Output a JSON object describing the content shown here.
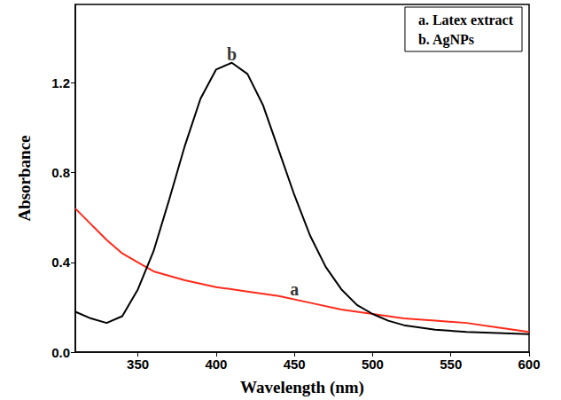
{
  "chart_data": {
    "type": "line",
    "x_label": "Wavelength (nm)",
    "y_label": "Absorbance",
    "xlim": [
      310,
      600
    ],
    "xticks": [
      350,
      400,
      450,
      500,
      550,
      600
    ],
    "ylim": [
      0,
      1.55
    ],
    "yticks": [
      {
        "value": 0,
        "label": "0.0"
      },
      0.4,
      0.8,
      1.2
    ],
    "grid": false,
    "legend": "upper right",
    "series": [
      {
        "name": "a. Latex extract",
        "color": "#ff2a1a",
        "x": [
          310,
          320,
          330,
          340,
          350,
          360,
          370,
          380,
          400,
          420,
          440,
          460,
          480,
          500,
          520,
          540,
          560,
          580,
          600
        ],
        "values": [
          0.64,
          0.57,
          0.5,
          0.44,
          0.4,
          0.36,
          0.34,
          0.32,
          0.29,
          0.27,
          0.25,
          0.22,
          0.19,
          0.17,
          0.15,
          0.14,
          0.13,
          0.11,
          0.09
        ]
      },
      {
        "name": "b. AgNPs",
        "color": "#000000",
        "x": [
          310,
          320,
          330,
          340,
          350,
          360,
          370,
          380,
          390,
          400,
          410,
          420,
          430,
          440,
          450,
          460,
          470,
          480,
          490,
          500,
          510,
          520,
          540,
          560,
          580,
          600
        ],
        "values": [
          0.18,
          0.15,
          0.13,
          0.16,
          0.28,
          0.45,
          0.68,
          0.92,
          1.13,
          1.26,
          1.29,
          1.24,
          1.1,
          0.9,
          0.7,
          0.52,
          0.38,
          0.28,
          0.21,
          0.17,
          0.14,
          0.12,
          0.1,
          0.09,
          0.085,
          0.08
        ]
      }
    ],
    "annotations": [
      {
        "text": "a",
        "x": 450,
        "y": 0.28
      },
      {
        "text": "b",
        "x": 410,
        "y": 1.33
      }
    ]
  }
}
